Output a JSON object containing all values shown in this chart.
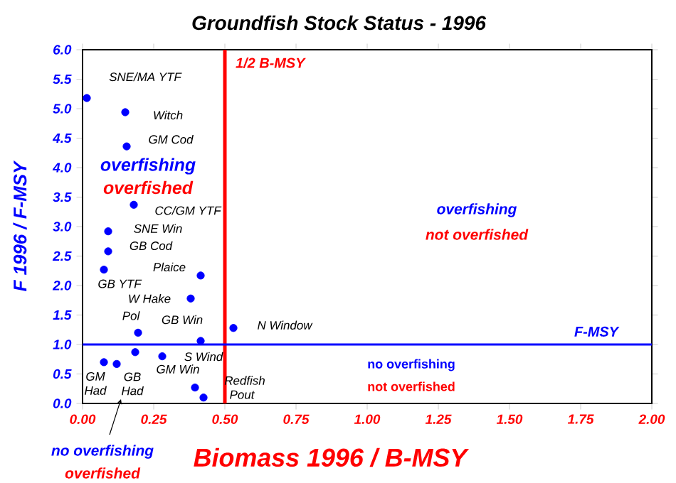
{
  "chart_data": {
    "type": "scatter",
    "title": "Groundfish Stock Status - 1996",
    "xlabel": "Biomass 1996 / B-MSY",
    "ylabel": "F 1996 / F-MSY",
    "x": [
      0.015,
      0.15,
      0.155,
      0.18,
      0.09,
      0.09,
      0.075,
      0.415,
      0.38,
      0.195,
      0.415,
      0.53,
      0.075,
      0.12,
      0.185,
      0.28,
      0.395,
      0.425
    ],
    "values": [
      5.18,
      4.94,
      4.36,
      3.37,
      2.92,
      2.58,
      2.27,
      2.17,
      1.78,
      1.2,
      1.06,
      1.28,
      0.7,
      0.67,
      0.87,
      0.8,
      0.27,
      0.1
    ],
    "color": "#0000ff",
    "marker": "circle",
    "grid": false,
    "xlim": [
      0,
      2
    ],
    "ylim": [
      0,
      6
    ],
    "xticks": [
      {
        "value": 0,
        "label": "0.00"
      },
      {
        "value": 0.25,
        "label": "0.25"
      },
      {
        "value": 0.5,
        "label": "0.50"
      },
      {
        "value": 0.75,
        "label": "0.75"
      },
      {
        "value": 1,
        "label": "1.00"
      },
      {
        "value": 1.25,
        "label": "1.25"
      },
      {
        "value": 1.5,
        "label": "1.50"
      },
      {
        "value": 1.75,
        "label": "1.75"
      },
      {
        "value": 2,
        "label": "2.00"
      }
    ],
    "yticks": [
      {
        "value": 0,
        "label": "0.0"
      },
      {
        "value": 0.5,
        "label": "0.5"
      },
      {
        "value": 1,
        "label": "1.0"
      },
      {
        "value": 1.5,
        "label": "1.5"
      },
      {
        "value": 2,
        "label": "2.0"
      },
      {
        "value": 2.5,
        "label": "2.5"
      },
      {
        "value": 3,
        "label": "3.0"
      },
      {
        "value": 3.5,
        "label": "3.5"
      },
      {
        "value": 4,
        "label": "4.0"
      },
      {
        "value": 4.5,
        "label": "4.5"
      },
      {
        "value": 5,
        "label": "5.0"
      },
      {
        "value": 5.5,
        "label": "5.5"
      },
      {
        "value": 6,
        "label": "6.0"
      }
    ],
    "ref_lines": [
      {
        "axis": "x",
        "value": 0.5,
        "label": "1/2 B-MSY",
        "color": "#ff0000"
      },
      {
        "axis": "y",
        "value": 1,
        "label": "F-MSY",
        "color": "#0000ff"
      }
    ],
    "annotations": [
      {
        "text": "SNE/MA YTF",
        "x": 0.015,
        "y": 5.18
      },
      {
        "text": "Witch",
        "x": 0.15,
        "y": 4.94
      },
      {
        "text": "GM Cod",
        "x": 0.155,
        "y": 4.36
      },
      {
        "text": "CC/GM YTF",
        "x": 0.18,
        "y": 3.37
      },
      {
        "text": "SNE Win",
        "x": 0.09,
        "y": 2.92
      },
      {
        "text": "GB Cod",
        "x": 0.09,
        "y": 2.58
      },
      {
        "text": "GB YTF",
        "x": 0.075,
        "y": 2.27
      },
      {
        "text": "Plaice",
        "x": 0.415,
        "y": 2.17
      },
      {
        "text": "W Hake",
        "x": 0.38,
        "y": 1.78
      },
      {
        "text": "Pol",
        "x": 0.195,
        "y": 1.2
      },
      {
        "text": "GB Win",
        "x": 0.415,
        "y": 1.06
      },
      {
        "text": "N Window",
        "x": 0.53,
        "y": 1.28
      },
      {
        "text": "GM Had",
        "x": 0.075,
        "y": 0.7
      },
      {
        "text": "GB Had",
        "x": 0.12,
        "y": 0.67
      },
      "S Wind",
      {
        "text": "GM Win",
        "x": 0.28,
        "y": 0.8
      },
      {
        "text": "Redfish",
        "x": 0.395,
        "y": 0.27
      },
      {
        "text": "Pout",
        "x": 0.425,
        "y": 0.1
      },
      "overfishing",
      "overfished",
      "overfishing",
      "not overfished",
      "no overfishing",
      "not overfished",
      "no overfishing",
      "overfished"
    ]
  }
}
